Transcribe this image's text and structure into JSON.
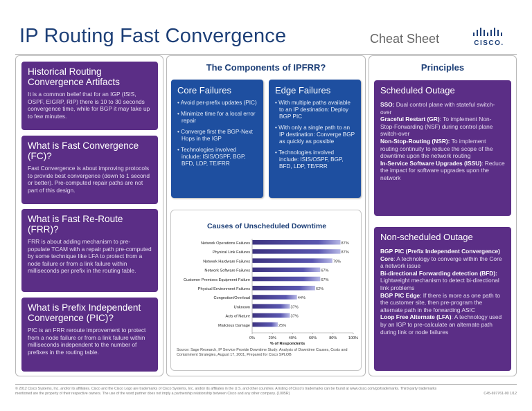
{
  "header": {
    "title": "IP Routing Fast Convergence",
    "subtitle": "Cheat Sheet",
    "logo_text": "CISCO."
  },
  "left": {
    "sections": [
      {
        "title": "Historical Routing Convergence Artifacts",
        "body": "It is a common belief that for an IGP (ISIS, OSPF, EIGRP, RIP) there is 10 to 30 seconds convergence time, while for BGP it may take up to few minutes."
      },
      {
        "title": "What is Fast Convergence (FC)?",
        "body": "Fast Convergence is about improving protocols to provide best convergence (down to 1 second or better). Pre-computed repair paths are not part of this design."
      },
      {
        "title": "What is Fast Re-Route (FRR)?",
        "body": "FRR is about adding mechanism to pre-populate TCAM with a repair path pre-computed by some technique like LFA to protect from a node failure or from a link failure within milliseconds per prefix in the routing table."
      },
      {
        "title": "What is Prefix Independent Convergence (PIC)?",
        "body": "PIC is an FRR reroute improvement to protect from a node failure or from a link failure within milliseconds independent to the number of prefixes in the routing table."
      }
    ]
  },
  "middle": {
    "heading": "The Components of IPFRR?",
    "core": {
      "title": "Core Failures",
      "items": [
        "Avoid per-prefix updates (PIC)",
        "Minimize time for a local error repair",
        "Converge first the BGP-Next Hops in the IGP",
        "Technologies involved include: ISIS/OSPF, BGP, BFD, LDP, TE/FRR"
      ]
    },
    "edge": {
      "title": "Edge Failures",
      "items": [
        "With multiple paths available to an IP destination: Deploy BGP PIC",
        "With only a single path to an IP destination: Converge BGP as quickly as possible",
        "Technologies involved include: ISIS/OSPF, BGP, BFD, LDP, TE/FRR"
      ]
    }
  },
  "chart_data": {
    "type": "bar",
    "orientation": "horizontal",
    "title": "Causes of Unscheduled Downtime",
    "categories": [
      "Network Operations Failures",
      "Physical Link Failures",
      "Network Hardware Failures",
      "Network Software Failures",
      "Customer Premises Equipment Failure",
      "Physical Environment Failures",
      "Congestion/Overload",
      "Unknown",
      "Acts of Nature",
      "Malicious Damage"
    ],
    "values": [
      87,
      87,
      79,
      67,
      67,
      62,
      44,
      37,
      37,
      25
    ],
    "value_labels": [
      "87%",
      "87%",
      "79%",
      "67%",
      "67%",
      "62%",
      "44%",
      "37%",
      "37%",
      "25%"
    ],
    "xlabel": "% of Respondents",
    "xlim": [
      0,
      100
    ],
    "xticks": [
      "0%",
      "20%",
      "40%",
      "60%",
      "80%",
      "100%"
    ],
    "source": "Source: Sage Research, IP Service Provide Downtime Study: Analysis of Downtime Causes, Costs and Containment Strategies, August 17, 2001, Prepared for Cisco SPLOB",
    "bar_color": "#3d3380"
  },
  "right": {
    "heading": "Principles",
    "scheduled": {
      "title": "Scheduled Outage",
      "items": [
        {
          "term": "SSO:",
          "text": " Dual control plane with stateful switch-over"
        },
        {
          "term": "Graceful Restart (GR)",
          "text": ": To implement Non-Stop-Forwarding (NSF) during control plane switch-over"
        },
        {
          "term": "Non-Stop-Routing (NSR):",
          "text": " To implement routing continuity to reduce the scope of the downtime upon the network routing"
        },
        {
          "term": "In-Service Software Upgrades (ISSU)",
          "text": ": Reduce the impact for software upgrades upon the network"
        }
      ]
    },
    "nonscheduled": {
      "title": "Non-scheduled Outage",
      "items": [
        {
          "term": "BGP PIC (Prefix Independent Convergence) Core",
          "text": ": A technology to converge within the Core a network issue"
        },
        {
          "term": "Bi-directional Forwarding detection  (BFD):",
          "text": " Lightweight mechanism to detect bi-directional link problems"
        },
        {
          "term": "BGP PIC Edge",
          "text": ": If there is more as one path to the customer site, then pre-program the alternate path in the forwarding ASIC"
        },
        {
          "term": "Loop Free Alternate (LFA)",
          "text": ": A technology used by an IGP to pre-calculate an alternate path during link or node failures"
        }
      ]
    }
  },
  "footer": {
    "line1": "© 2012 Cisco Systems, Inc. and/or its affiliates. Cisco and the Cisco Logo are trademarks of Cisco Systems, Inc. and/or its affiliates in the U.S. and other countries. A listing of Cisco's trademarks can be found at www.cisco.com/go/trademarks. Third-party trademarks",
    "line2": "mentioned are the property of their respective owners. The use of the word partner does not imply a partnership relationship between Cisco and any other company. (1005R)",
    "code": "C45-697761-00  1/12"
  },
  "colors": {
    "title": "#1d3f77",
    "purple": "#5b2e86",
    "blue": "#1e4fa0"
  }
}
